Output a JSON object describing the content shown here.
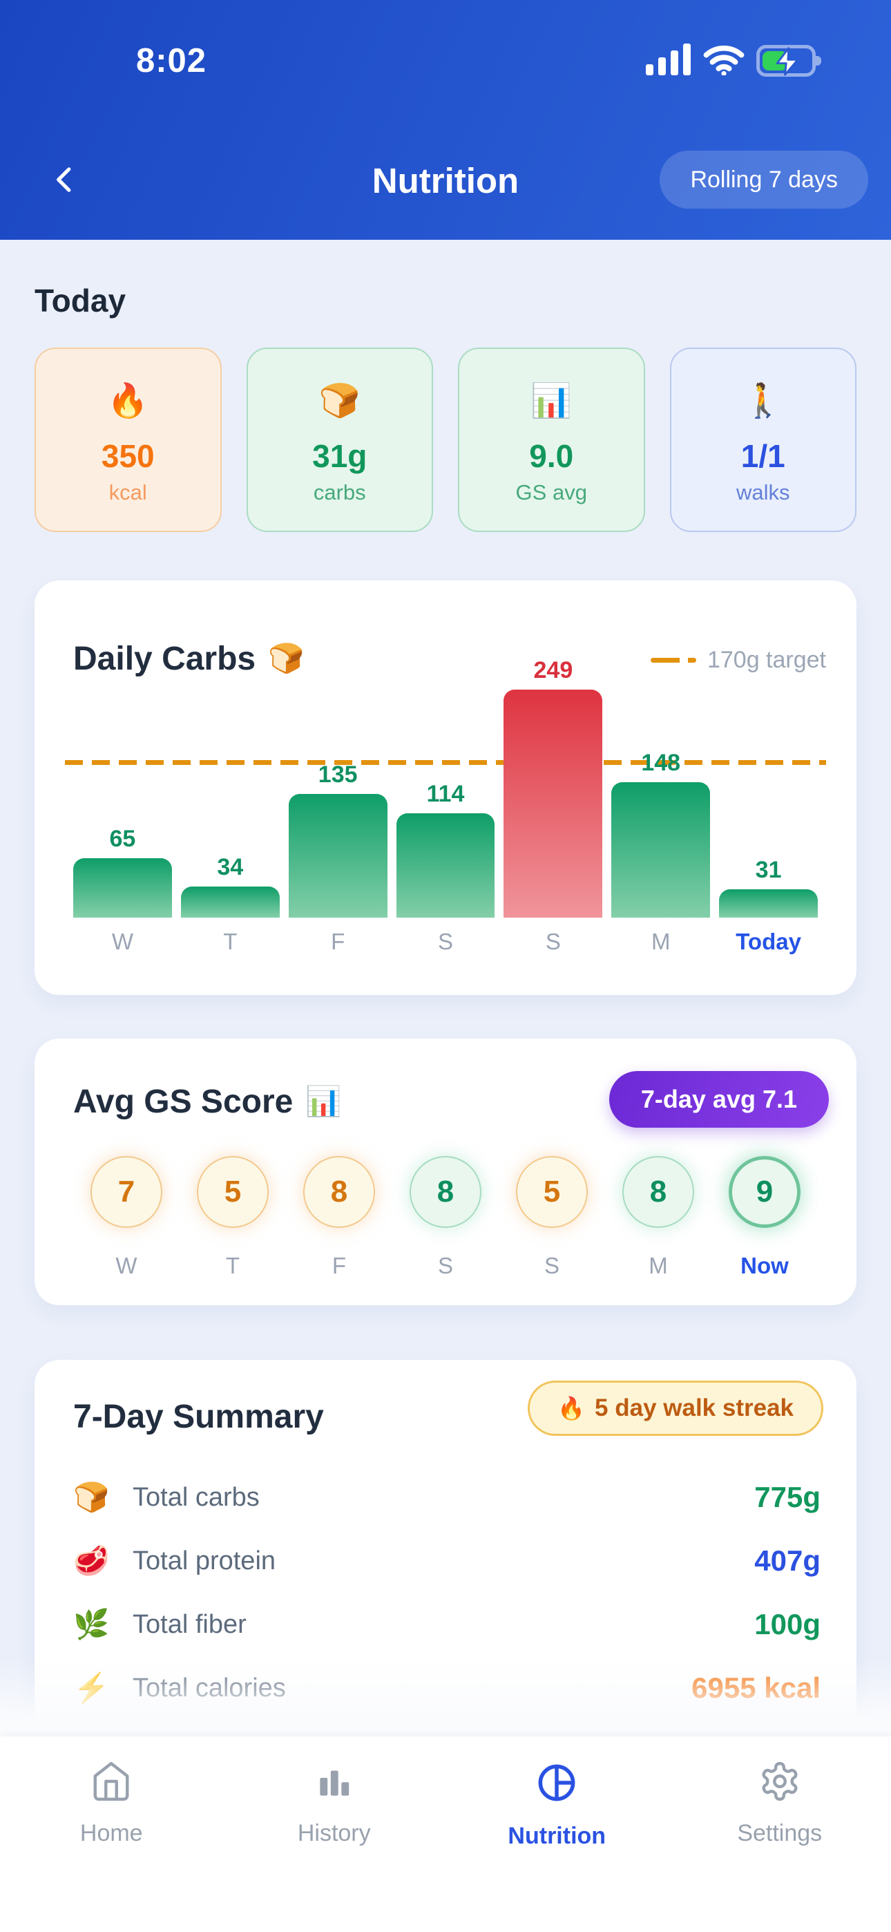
{
  "status_bar": {
    "time": "8:02"
  },
  "header": {
    "title": "Nutrition",
    "range_pill": "Rolling 7 days"
  },
  "today": {
    "heading": "Today",
    "cards": [
      {
        "emoji": "🔥",
        "emoji_name": "fire-icon",
        "value": "350",
        "label": "kcal",
        "theme": "orange"
      },
      {
        "emoji": "🍞",
        "emoji_name": "bread-icon",
        "value": "31g",
        "label": "carbs",
        "theme": "green"
      },
      {
        "emoji": "📊",
        "emoji_name": "chart-icon",
        "value": "9.0",
        "label": "GS avg",
        "theme": "green"
      },
      {
        "emoji": "🚶",
        "emoji_name": "walker-icon",
        "value": "1/1",
        "label": "walks",
        "theme": "blue"
      }
    ]
  },
  "chart_data": [
    {
      "type": "bar",
      "title": "Daily Carbs",
      "title_emoji": "🍞",
      "legend": "170g target",
      "target_value": 170,
      "categories": [
        "W",
        "T",
        "F",
        "S",
        "S",
        "M",
        "Today"
      ],
      "values": [
        65,
        34,
        135,
        114,
        249,
        148,
        31
      ],
      "over_target": [
        false,
        false,
        false,
        false,
        true,
        false,
        false
      ],
      "ylim": [
        0,
        249
      ],
      "grid": false,
      "legend_position": "top-right"
    },
    {
      "type": "score-row",
      "title": "Avg GS Score",
      "title_emoji": "📊",
      "badge": "7-day avg 7.1",
      "categories": [
        "W",
        "T",
        "F",
        "S",
        "S",
        "M",
        "Now"
      ],
      "values": [
        7,
        5,
        8,
        8,
        5,
        8,
        9
      ],
      "circle_themes": [
        "orange",
        "orange",
        "orange",
        "green",
        "orange",
        "green",
        "green"
      ]
    }
  ],
  "summary": {
    "title": "7-Day Summary",
    "badge_emoji": "🔥",
    "badge_text": "5 day walk streak",
    "rows": [
      {
        "emoji": "🍞",
        "emoji_name": "bread-icon",
        "label": "Total carbs",
        "value": "775g",
        "color": "green"
      },
      {
        "emoji": "🥩",
        "emoji_name": "meat-icon",
        "label": "Total protein",
        "value": "407g",
        "color": "blue"
      },
      {
        "emoji": "🌿",
        "emoji_name": "herb-icon",
        "label": "Total fiber",
        "value": "100g",
        "color": "green"
      },
      {
        "emoji": "⚡",
        "emoji_name": "lightning-icon",
        "label": "Total calories",
        "value": "6955 kcal",
        "color": "orange"
      }
    ]
  },
  "tab_bar": {
    "tabs": [
      {
        "label": "Home",
        "icon": "home-icon",
        "active": false
      },
      {
        "label": "History",
        "icon": "history-icon",
        "active": false
      },
      {
        "label": "Nutrition",
        "icon": "nutrition-icon",
        "active": true
      },
      {
        "label": "Settings",
        "icon": "settings-icon",
        "active": false
      }
    ]
  },
  "colors": {
    "header_blue_start": "#1b46c2",
    "header_blue_end": "#2e63da",
    "accent_blue": "#2a52e2",
    "green": "#11975c",
    "orange": "#f5740f",
    "red": "#d9303c",
    "target_orange": "#e2920e",
    "purple_pill_start": "#6c29d5",
    "purple_pill_end": "#8a3fe8",
    "streak_text": "#bd5c12",
    "battery_green": "#32d158"
  }
}
